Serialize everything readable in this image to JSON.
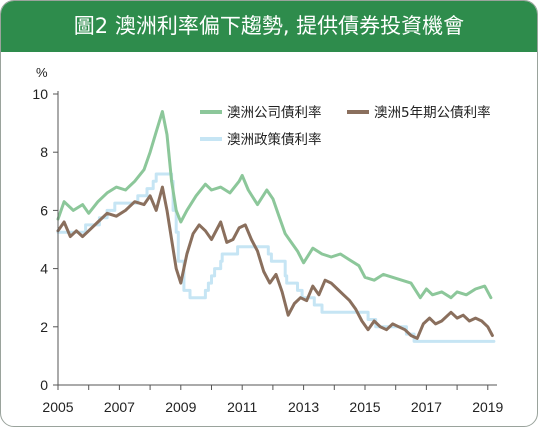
{
  "header": {
    "title": "圖2 澳洲利率偏下趨勢, 提供債券投資機會"
  },
  "colors": {
    "header_bg": "#2e8c4c",
    "corporate": "#8cc79a",
    "government_5y": "#8a6f5d",
    "policy": "#c6e5f4"
  },
  "chart_data": {
    "type": "line",
    "title": "圖2 澳洲利率偏下趨勢, 提供債券投資機會",
    "ylabel": "%",
    "xlabel": "",
    "xlim": [
      2005.0,
      2019.3
    ],
    "ylim": [
      0,
      10
    ],
    "x_ticks": [
      "2005",
      "2007",
      "2009",
      "2011",
      "2013",
      "2015",
      "2017",
      "2019"
    ],
    "y_ticks": [
      "0",
      "2",
      "4",
      "6",
      "8",
      "10"
    ],
    "grid": false,
    "legend_position": "top-right",
    "series": [
      {
        "name": "澳洲公司債利率",
        "color": "#8cc79a",
        "points": [
          [
            2005.0,
            5.7
          ],
          [
            2005.2,
            6.3
          ],
          [
            2005.5,
            6.0
          ],
          [
            2005.8,
            6.2
          ],
          [
            2006.0,
            5.9
          ],
          [
            2006.3,
            6.3
          ],
          [
            2006.6,
            6.6
          ],
          [
            2006.9,
            6.8
          ],
          [
            2007.2,
            6.7
          ],
          [
            2007.5,
            7.0
          ],
          [
            2007.8,
            7.4
          ],
          [
            2008.0,
            8.0
          ],
          [
            2008.2,
            8.7
          ],
          [
            2008.4,
            9.4
          ],
          [
            2008.55,
            8.6
          ],
          [
            2008.7,
            7.0
          ],
          [
            2008.85,
            6.0
          ],
          [
            2009.0,
            5.6
          ],
          [
            2009.2,
            6.0
          ],
          [
            2009.5,
            6.5
          ],
          [
            2009.8,
            6.9
          ],
          [
            2010.0,
            6.7
          ],
          [
            2010.3,
            6.8
          ],
          [
            2010.6,
            6.6
          ],
          [
            2010.9,
            7.0
          ],
          [
            2011.0,
            7.2
          ],
          [
            2011.2,
            6.7
          ],
          [
            2011.5,
            6.2
          ],
          [
            2011.8,
            6.7
          ],
          [
            2012.0,
            6.4
          ],
          [
            2012.2,
            5.8
          ],
          [
            2012.4,
            5.2
          ],
          [
            2012.6,
            4.9
          ],
          [
            2012.8,
            4.6
          ],
          [
            2013.0,
            4.2
          ],
          [
            2013.3,
            4.7
          ],
          [
            2013.6,
            4.5
          ],
          [
            2013.9,
            4.4
          ],
          [
            2014.2,
            4.5
          ],
          [
            2014.5,
            4.3
          ],
          [
            2014.8,
            4.1
          ],
          [
            2015.0,
            3.7
          ],
          [
            2015.3,
            3.6
          ],
          [
            2015.6,
            3.8
          ],
          [
            2015.9,
            3.7
          ],
          [
            2016.2,
            3.6
          ],
          [
            2016.5,
            3.5
          ],
          [
            2016.8,
            3.0
          ],
          [
            2017.0,
            3.3
          ],
          [
            2017.2,
            3.1
          ],
          [
            2017.5,
            3.2
          ],
          [
            2017.8,
            3.0
          ],
          [
            2018.0,
            3.2
          ],
          [
            2018.3,
            3.1
          ],
          [
            2018.6,
            3.3
          ],
          [
            2018.9,
            3.4
          ],
          [
            2019.1,
            3.0
          ]
        ]
      },
      {
        "name": "澳洲5年期公債利率",
        "color": "#8a6f5d",
        "points": [
          [
            2005.0,
            5.3
          ],
          [
            2005.2,
            5.6
          ],
          [
            2005.4,
            5.1
          ],
          [
            2005.6,
            5.3
          ],
          [
            2005.8,
            5.1
          ],
          [
            2006.0,
            5.3
          ],
          [
            2006.3,
            5.6
          ],
          [
            2006.6,
            5.9
          ],
          [
            2006.9,
            5.8
          ],
          [
            2007.2,
            6.0
          ],
          [
            2007.5,
            6.3
          ],
          [
            2007.8,
            6.2
          ],
          [
            2008.0,
            6.5
          ],
          [
            2008.2,
            6.0
          ],
          [
            2008.4,
            6.8
          ],
          [
            2008.55,
            6.0
          ],
          [
            2008.7,
            5.0
          ],
          [
            2008.85,
            4.0
          ],
          [
            2009.0,
            3.5
          ],
          [
            2009.2,
            4.5
          ],
          [
            2009.4,
            5.2
          ],
          [
            2009.6,
            5.5
          ],
          [
            2009.8,
            5.3
          ],
          [
            2010.0,
            5.0
          ],
          [
            2010.3,
            5.6
          ],
          [
            2010.5,
            4.9
          ],
          [
            2010.7,
            5.0
          ],
          [
            2010.9,
            5.4
          ],
          [
            2011.1,
            5.5
          ],
          [
            2011.3,
            5.0
          ],
          [
            2011.5,
            4.6
          ],
          [
            2011.7,
            3.9
          ],
          [
            2011.9,
            3.5
          ],
          [
            2012.1,
            3.8
          ],
          [
            2012.3,
            3.2
          ],
          [
            2012.5,
            2.4
          ],
          [
            2012.7,
            2.8
          ],
          [
            2012.9,
            3.0
          ],
          [
            2013.1,
            2.9
          ],
          [
            2013.3,
            3.4
          ],
          [
            2013.5,
            3.1
          ],
          [
            2013.7,
            3.6
          ],
          [
            2013.9,
            3.5
          ],
          [
            2014.1,
            3.3
          ],
          [
            2014.3,
            3.1
          ],
          [
            2014.5,
            2.9
          ],
          [
            2014.7,
            2.6
          ],
          [
            2014.9,
            2.2
          ],
          [
            2015.1,
            1.9
          ],
          [
            2015.3,
            2.2
          ],
          [
            2015.5,
            2.0
          ],
          [
            2015.7,
            1.9
          ],
          [
            2015.9,
            2.1
          ],
          [
            2016.1,
            2.0
          ],
          [
            2016.3,
            1.9
          ],
          [
            2016.5,
            1.7
          ],
          [
            2016.7,
            1.6
          ],
          [
            2016.9,
            2.1
          ],
          [
            2017.1,
            2.3
          ],
          [
            2017.3,
            2.1
          ],
          [
            2017.5,
            2.2
          ],
          [
            2017.8,
            2.5
          ],
          [
            2018.0,
            2.3
          ],
          [
            2018.2,
            2.4
          ],
          [
            2018.4,
            2.2
          ],
          [
            2018.6,
            2.3
          ],
          [
            2018.8,
            2.2
          ],
          [
            2019.0,
            2.0
          ],
          [
            2019.15,
            1.7
          ]
        ]
      },
      {
        "name": "澳洲政策債利率",
        "color": "#c6e5f4",
        "points": [
          [
            2005.0,
            5.25
          ],
          [
            2005.9,
            5.25
          ],
          [
            2005.9,
            5.5
          ],
          [
            2006.35,
            5.5
          ],
          [
            2006.35,
            5.75
          ],
          [
            2006.6,
            5.75
          ],
          [
            2006.6,
            6.0
          ],
          [
            2006.85,
            6.0
          ],
          [
            2006.85,
            6.25
          ],
          [
            2007.6,
            6.25
          ],
          [
            2007.6,
            6.5
          ],
          [
            2007.9,
            6.5
          ],
          [
            2007.9,
            6.75
          ],
          [
            2008.1,
            6.75
          ],
          [
            2008.1,
            7.0
          ],
          [
            2008.2,
            7.0
          ],
          [
            2008.2,
            7.25
          ],
          [
            2008.7,
            7.25
          ],
          [
            2008.7,
            7.0
          ],
          [
            2008.75,
            7.0
          ],
          [
            2008.75,
            6.0
          ],
          [
            2008.85,
            6.0
          ],
          [
            2008.85,
            5.25
          ],
          [
            2008.92,
            5.25
          ],
          [
            2008.92,
            4.25
          ],
          [
            2009.1,
            4.25
          ],
          [
            2009.1,
            3.25
          ],
          [
            2009.3,
            3.25
          ],
          [
            2009.3,
            3.0
          ],
          [
            2009.8,
            3.0
          ],
          [
            2009.8,
            3.25
          ],
          [
            2009.9,
            3.25
          ],
          [
            2009.9,
            3.5
          ],
          [
            2010.0,
            3.5
          ],
          [
            2010.0,
            3.75
          ],
          [
            2010.1,
            3.75
          ],
          [
            2010.1,
            4.0
          ],
          [
            2010.3,
            4.0
          ],
          [
            2010.3,
            4.25
          ],
          [
            2010.35,
            4.25
          ],
          [
            2010.35,
            4.5
          ],
          [
            2010.85,
            4.5
          ],
          [
            2010.85,
            4.75
          ],
          [
            2011.85,
            4.75
          ],
          [
            2011.85,
            4.5
          ],
          [
            2011.95,
            4.5
          ],
          [
            2011.95,
            4.25
          ],
          [
            2012.4,
            4.25
          ],
          [
            2012.4,
            3.75
          ],
          [
            2012.45,
            3.75
          ],
          [
            2012.45,
            3.5
          ],
          [
            2012.8,
            3.5
          ],
          [
            2012.8,
            3.25
          ],
          [
            2012.95,
            3.25
          ],
          [
            2012.95,
            3.0
          ],
          [
            2013.35,
            3.0
          ],
          [
            2013.35,
            2.75
          ],
          [
            2013.6,
            2.75
          ],
          [
            2013.6,
            2.5
          ],
          [
            2015.1,
            2.5
          ],
          [
            2015.1,
            2.25
          ],
          [
            2015.35,
            2.25
          ],
          [
            2015.35,
            2.0
          ],
          [
            2016.35,
            2.0
          ],
          [
            2016.35,
            1.75
          ],
          [
            2016.6,
            1.75
          ],
          [
            2016.6,
            1.5
          ],
          [
            2019.2,
            1.5
          ]
        ]
      }
    ]
  }
}
